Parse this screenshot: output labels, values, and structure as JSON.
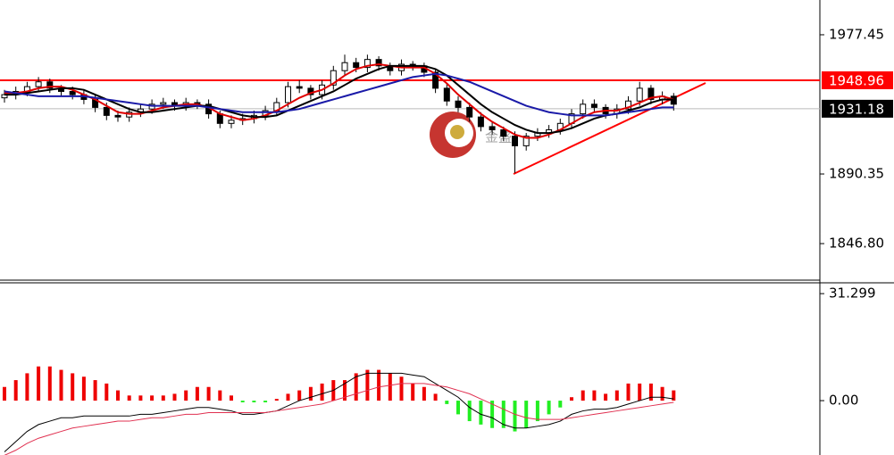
{
  "chart_data": [
    {
      "type": "candlestick",
      "watermark": "金盛",
      "ylim": [
        1824.5,
        1999.2
      ],
      "yticks": [
        {
          "value": 1846.8,
          "label": "1846.80"
        },
        1890.35,
        1977.45
      ],
      "open": [
        1938,
        1940,
        1942,
        1945,
        1948,
        1944,
        1942,
        1940,
        1937,
        1932,
        1927,
        1926,
        1929,
        1931,
        1934,
        1935,
        1933,
        1935,
        1934,
        1928,
        1922,
        1924,
        1925,
        1927,
        1930,
        1935,
        1945,
        1944,
        1940,
        1946,
        1955,
        1960,
        1957,
        1962,
        1958,
        1955,
        1959,
        1958,
        1954,
        1944,
        1936,
        1932,
        1926,
        1920,
        1918,
        1914,
        1908,
        1914,
        1916,
        1918,
        1922,
        1928,
        1934,
        1932,
        1928,
        1931,
        1936,
        1944,
        1937,
        1939
      ],
      "high": [
        1943,
        1945,
        1948,
        1951,
        1950,
        1946,
        1945,
        1943,
        1940,
        1935,
        1930,
        1932,
        1934,
        1937,
        1938,
        1937,
        1938,
        1937,
        1937,
        1930,
        1927,
        1928,
        1930,
        1933,
        1938,
        1948,
        1949,
        1946,
        1949,
        1958,
        1965,
        1963,
        1965,
        1964,
        1960,
        1962,
        1961,
        1960,
        1956,
        1947,
        1939,
        1935,
        1929,
        1923,
        1920,
        1917,
        1916,
        1919,
        1921,
        1925,
        1931,
        1937,
        1937,
        1934,
        1934,
        1939,
        1948,
        1946,
        1942,
        1941
      ],
      "low": [
        1935,
        1937,
        1939,
        1942,
        1941,
        1939,
        1937,
        1934,
        1929,
        1924,
        1923,
        1923,
        1926,
        1928,
        1931,
        1930,
        1930,
        1931,
        1925,
        1919,
        1919,
        1921,
        1922,
        1924,
        1927,
        1932,
        1941,
        1937,
        1937,
        1943,
        1952,
        1954,
        1954,
        1955,
        1952,
        1952,
        1955,
        1951,
        1941,
        1933,
        1929,
        1923,
        1917,
        1915,
        1911,
        1891,
        1905,
        1911,
        1913,
        1915,
        1919,
        1925,
        1929,
        1925,
        1925,
        1928,
        1933,
        1934,
        1934,
        1930
      ],
      "close": [
        1940,
        1942,
        1945,
        1948,
        1944,
        1942,
        1940,
        1937,
        1932,
        1927,
        1926,
        1929,
        1931,
        1934,
        1935,
        1933,
        1935,
        1934,
        1928,
        1922,
        1924,
        1925,
        1927,
        1930,
        1935,
        1945,
        1944,
        1940,
        1946,
        1955,
        1960,
        1957,
        1962,
        1958,
        1955,
        1959,
        1958,
        1954,
        1944,
        1936,
        1932,
        1926,
        1920,
        1918,
        1914,
        1908,
        1914,
        1916,
        1918,
        1922,
        1928,
        1934,
        1932,
        1928,
        1931,
        1936,
        1944,
        1937,
        1939,
        1934
      ],
      "series": [
        {
          "color": "#e00000",
          "values": [
            1941,
            1941,
            1942,
            1944,
            1945,
            1945,
            1943,
            1940,
            1937,
            1933,
            1929,
            1928,
            1928,
            1930,
            1932,
            1933,
            1934,
            1934,
            1932,
            1928,
            1926,
            1924,
            1925,
            1927,
            1930,
            1934,
            1938,
            1941,
            1943,
            1947,
            1952,
            1956,
            1958,
            1959,
            1958,
            1957,
            1957,
            1957,
            1953,
            1947,
            1940,
            1934,
            1928,
            1923,
            1919,
            1915,
            1913,
            1913,
            1915,
            1918,
            1922,
            1926,
            1929,
            1930,
            1930,
            1932,
            1935,
            1938,
            1939,
            1937
          ]
        },
        {
          "color": "#000000",
          "values": [
            1940,
            1940,
            1941,
            1942,
            1943,
            1944,
            1944,
            1943,
            1940,
            1937,
            1934,
            1931,
            1929,
            1929,
            1930,
            1931,
            1932,
            1933,
            1933,
            1931,
            1929,
            1927,
            1926,
            1926,
            1927,
            1930,
            1933,
            1936,
            1939,
            1942,
            1946,
            1950,
            1953,
            1956,
            1958,
            1958,
            1958,
            1958,
            1956,
            1952,
            1946,
            1940,
            1934,
            1929,
            1925,
            1921,
            1918,
            1916,
            1916,
            1917,
            1919,
            1922,
            1925,
            1927,
            1928,
            1930,
            1932,
            1935,
            1937,
            1937
          ]
        },
        {
          "color": "#1a1aa8",
          "values": [
            1942,
            1941,
            1940,
            1939,
            1939,
            1939,
            1939,
            1939,
            1938,
            1937,
            1936,
            1935,
            1934,
            1933,
            1933,
            1933,
            1933,
            1933,
            1932,
            1931,
            1930,
            1929,
            1929,
            1929,
            1929,
            1930,
            1931,
            1933,
            1935,
            1937,
            1939,
            1941,
            1943,
            1945,
            1947,
            1949,
            1951,
            1952,
            1953,
            1952,
            1950,
            1948,
            1945,
            1942,
            1939,
            1936,
            1933,
            1931,
            1929,
            1928,
            1927,
            1927,
            1927,
            1927,
            1928,
            1929,
            1930,
            1931,
            1932,
            1932
          ]
        }
      ],
      "price_lines": [
        {
          "value": 1948.96,
          "color": "#ff0000"
        },
        {
          "value": 1931.18,
          "color": "#000000"
        }
      ]
    },
    {
      "type": "macd",
      "ylim": [
        -15.9,
        34.2
      ],
      "yticks": [
        {
          "value": 0,
          "label": "0.00"
        },
        31.299
      ],
      "histogram": [
        4,
        6,
        8,
        10,
        10,
        9,
        8,
        7,
        6,
        5,
        3,
        1.5,
        1.5,
        1.5,
        1.5,
        2,
        3,
        4,
        4,
        3,
        1.5,
        -0.5,
        -0.5,
        -0.5,
        0.5,
        2,
        3,
        4,
        5,
        6,
        6,
        8,
        9,
        9,
        8,
        7,
        5,
        4,
        2,
        -1,
        -4,
        -6,
        -7,
        -8,
        -8,
        -9,
        -8,
        -6,
        -4,
        -2,
        1,
        3,
        3,
        2,
        3,
        5,
        5,
        5,
        4,
        3
      ],
      "positive_color": "#ee0000",
      "negative_color": "#22ee22",
      "series": [
        {
          "color": "#000000",
          "values": [
            -15,
            -12,
            -9,
            -7,
            -6,
            -5,
            -5,
            -4.5,
            -4.5,
            -4.5,
            -4.5,
            -4.5,
            -4,
            -4,
            -3.5,
            -3,
            -2.5,
            -2,
            -2,
            -2.5,
            -3,
            -4,
            -4,
            -3.5,
            -3,
            -1.5,
            0,
            1,
            2,
            3,
            5,
            7,
            8,
            8,
            8,
            8,
            7.5,
            7,
            5,
            3,
            1,
            -2,
            -4,
            -5,
            -7,
            -8,
            -8,
            -7.5,
            -7,
            -6,
            -4,
            -3,
            -2.5,
            -2.5,
            -2,
            -1,
            0,
            1,
            1,
            0.5
          ]
        },
        {
          "color": "#e03050",
          "values": [
            -16,
            -14.5,
            -12.5,
            -11,
            -10,
            -9,
            -8,
            -7.5,
            -7,
            -6.5,
            -6,
            -6,
            -5.5,
            -5,
            -5,
            -4.5,
            -4,
            -4,
            -3.5,
            -3.5,
            -3.5,
            -3.5,
            -3.5,
            -3.5,
            -3,
            -2.5,
            -2,
            -1.5,
            -1,
            0,
            1,
            2,
            3,
            4,
            4.5,
            5,
            5,
            5,
            4.5,
            4,
            3,
            2,
            0.5,
            -1,
            -2.5,
            -4,
            -5,
            -5.5,
            -5.5,
            -5.5,
            -5,
            -4.5,
            -4,
            -3.5,
            -3,
            -2.5,
            -2,
            -1.5,
            -1,
            -0.5
          ]
        }
      ]
    }
  ]
}
